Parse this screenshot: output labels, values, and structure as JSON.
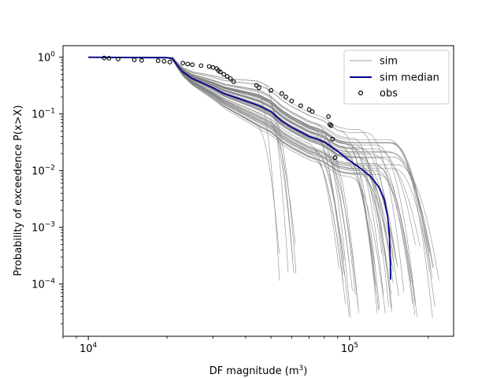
{
  "chart_data": {
    "type": "line",
    "x_scale": "log",
    "y_scale": "log",
    "xlim": [
      8000,
      250000
    ],
    "ylim": [
      1.2e-05,
      1.6
    ],
    "xlabel_main": "DF magnitude (m",
    "xlabel_sup": "3",
    "xlabel_close": ")",
    "ylabel": "Probability of exceedence P(x>X)",
    "x_ticks": [
      {
        "value": 10000,
        "base": "10",
        "exp": "4"
      },
      {
        "value": 100000,
        "base": "10",
        "exp": "5"
      }
    ],
    "y_ticks": [
      {
        "value": 1,
        "base": "10",
        "exp": "0"
      },
      {
        "value": 0.1,
        "base": "10",
        "exp": "−1"
      },
      {
        "value": 0.01,
        "base": "10",
        "exp": "−2"
      },
      {
        "value": 0.001,
        "base": "10",
        "exp": "−3"
      },
      {
        "value": 0.0001,
        "base": "10",
        "exp": "−4"
      }
    ],
    "legend_position": "top-right",
    "legend": [
      {
        "label": "sim",
        "kind": "line",
        "color": "#808080"
      },
      {
        "label": "sim median",
        "kind": "line",
        "color": "#00008b"
      },
      {
        "label": "obs",
        "kind": "marker",
        "color": "#000000"
      }
    ],
    "series": [
      {
        "name": "sim median",
        "color": "#00008b",
        "x": [
          10000,
          20000,
          21000,
          22000,
          23000,
          24000,
          25000,
          27000,
          30000,
          33000,
          36000,
          40000,
          45000,
          50000,
          55000,
          60000,
          65000,
          70000,
          75000,
          80000,
          90000,
          100000,
          110000,
          120000,
          130000,
          136000,
          140000,
          142000,
          143000,
          143500
        ],
        "y": [
          1,
          0.98,
          0.95,
          0.7,
          0.55,
          0.48,
          0.42,
          0.36,
          0.29,
          0.23,
          0.2,
          0.17,
          0.14,
          0.11,
          0.075,
          0.058,
          0.048,
          0.04,
          0.036,
          0.032,
          0.022,
          0.015,
          0.011,
          0.008,
          0.005,
          0.003,
          0.0015,
          0.0007,
          0.0003,
          0.00012
        ]
      },
      {
        "name": "obs",
        "color": "#000000",
        "x": [
          11500,
          12000,
          13000,
          15000,
          16000,
          18500,
          19500,
          20500,
          23000,
          24000,
          25000,
          27000,
          29000,
          30000,
          31000,
          31500,
          32000,
          33000,
          34000,
          35000,
          36000,
          44000,
          45000,
          50000,
          55000,
          57000,
          60000,
          65000,
          70000,
          72000,
          83000,
          84000,
          85000,
          86000,
          88000
        ],
        "y": [
          0.97,
          0.96,
          0.93,
          0.9,
          0.88,
          0.87,
          0.85,
          0.82,
          0.79,
          0.76,
          0.74,
          0.71,
          0.69,
          0.66,
          0.63,
          0.58,
          0.55,
          0.5,
          0.46,
          0.42,
          0.37,
          0.32,
          0.29,
          0.26,
          0.23,
          0.2,
          0.17,
          0.14,
          0.12,
          0.11,
          0.09,
          0.065,
          0.062,
          0.036,
          0.017
        ]
      }
    ]
  }
}
